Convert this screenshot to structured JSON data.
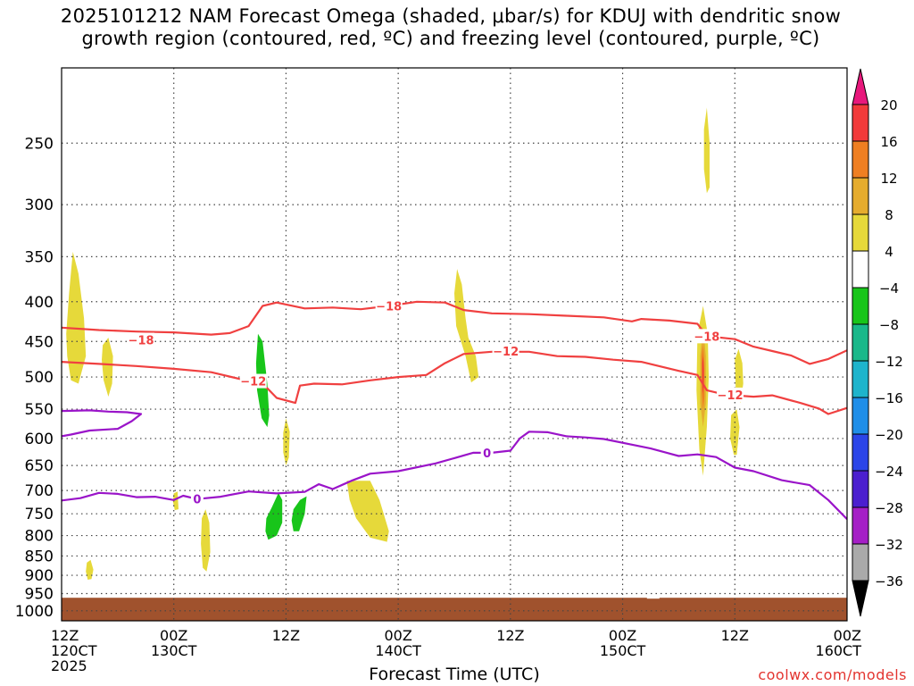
{
  "title": {
    "line1": "2025101212 NAM Forecast Omega (shaded, μbar/s) for KDUJ with dendritic snow",
    "line2": "growth region (contoured, red, ºC) and freezing level (contoured, purple, ºC)"
  },
  "credit": "coolwx.com/models",
  "chart_data": {
    "type": "time-pressure cross-section",
    "xlabel": "Forecast Time (UTC)",
    "ylabel": "",
    "x_range_hours": [
      0,
      84
    ],
    "ylim_hPa": [
      200,
      1030
    ],
    "y_scale": "log-pressure",
    "y_ticks": [
      250,
      300,
      350,
      400,
      450,
      500,
      550,
      600,
      650,
      700,
      750,
      800,
      850,
      900,
      950,
      1000
    ],
    "x_ticks": [
      {
        "hour": 0,
        "line1": "12Z",
        "line2": "120CT",
        "line3": "2025"
      },
      {
        "hour": 12,
        "line1": "00Z",
        "line2": "130CT",
        "line3": ""
      },
      {
        "hour": 24,
        "line1": "12Z",
        "line2": "",
        "line3": ""
      },
      {
        "hour": 36,
        "line1": "00Z",
        "line2": "140CT",
        "line3": ""
      },
      {
        "hour": 48,
        "line1": "12Z",
        "line2": "",
        "line3": ""
      },
      {
        "hour": 60,
        "line1": "00Z",
        "line2": "150CT",
        "line3": ""
      },
      {
        "hour": 72,
        "line1": "12Z",
        "line2": "",
        "line3": ""
      },
      {
        "hour": 84,
        "line1": "00Z",
        "line2": "160CT",
        "line3": ""
      }
    ],
    "colorbar": {
      "label_unit": "μbar/s",
      "levels": [
        20,
        16,
        12,
        8,
        4,
        -4,
        -8,
        -12,
        -16,
        -20,
        -24,
        -28,
        -32,
        -36
      ],
      "bins": [
        {
          "range": "16-20",
          "color": "#f23a3a"
        },
        {
          "range": "12-16",
          "color": "#ef7f22"
        },
        {
          "range": "8-12",
          "color": "#e5ac2e"
        },
        {
          "range": "4-8",
          "color": "#e6d93a"
        },
        {
          "range": "-4-4",
          "color": "#ffffff"
        },
        {
          "range": "-8--4",
          "color": "#18c51a"
        },
        {
          "range": "-12--8",
          "color": "#1ab88a"
        },
        {
          "range": "-16--12",
          "color": "#1eb4cc"
        },
        {
          "range": "-20--16",
          "color": "#1f8ee8"
        },
        {
          "range": "-24--20",
          "color": "#2b45e8"
        },
        {
          "range": "-28--24",
          "color": "#4b1fcf"
        },
        {
          "range": "-32--28",
          "color": "#a51fc6"
        },
        {
          "range": "-36--32",
          "color": "#aaaaaa"
        }
      ],
      "top_arrow_color": "#e8187c",
      "bottom_arrow_color": "#000000"
    },
    "ground_color": "#a0522d",
    "ground_top_hPa": 962,
    "contours": [
      {
        "name": "dgz-minus18",
        "label": "-18",
        "color": "#f04040",
        "label_points": [
          [
            8.5,
            448
          ],
          [
            35.0,
            405
          ],
          [
            69.0,
            443
          ]
        ],
        "points": [
          [
            0,
            432
          ],
          [
            4,
            435
          ],
          [
            8,
            437
          ],
          [
            12,
            438
          ],
          [
            16,
            441
          ],
          [
            18,
            439
          ],
          [
            20,
            430
          ],
          [
            21.5,
            405
          ],
          [
            23,
            401
          ],
          [
            26,
            408
          ],
          [
            29,
            407
          ],
          [
            32,
            409
          ],
          [
            35,
            405
          ],
          [
            38,
            400
          ],
          [
            41,
            401
          ],
          [
            43,
            410
          ],
          [
            46,
            414
          ],
          [
            50,
            415
          ],
          [
            54,
            417
          ],
          [
            58,
            419
          ],
          [
            61,
            424
          ],
          [
            62,
            421
          ],
          [
            65,
            423
          ],
          [
            68,
            427
          ],
          [
            69,
            443
          ],
          [
            72,
            447
          ],
          [
            74,
            457
          ],
          [
            76,
            463
          ],
          [
            78,
            469
          ],
          [
            80,
            481
          ],
          [
            82,
            474
          ],
          [
            84,
            462
          ]
        ]
      },
      {
        "name": "dgz-minus12",
        "label": "-12",
        "color": "#f04040",
        "label_points": [
          [
            20.5,
            506
          ],
          [
            47.5,
            463
          ],
          [
            71.5,
            527
          ]
        ],
        "points": [
          [
            0,
            478
          ],
          [
            4,
            481
          ],
          [
            8,
            484
          ],
          [
            12,
            488
          ],
          [
            16,
            493
          ],
          [
            20,
            506
          ],
          [
            22,
            517
          ],
          [
            23,
            532
          ],
          [
            25,
            540
          ],
          [
            25.5,
            513
          ],
          [
            27,
            510
          ],
          [
            30,
            511
          ],
          [
            33,
            505
          ],
          [
            36,
            500
          ],
          [
            39,
            497
          ],
          [
            41,
            480
          ],
          [
            43,
            467
          ],
          [
            46,
            464
          ],
          [
            50,
            464
          ],
          [
            53,
            470
          ],
          [
            56,
            471
          ],
          [
            59,
            475
          ],
          [
            62,
            478
          ],
          [
            66,
            491
          ],
          [
            68,
            497
          ],
          [
            69,
            520
          ],
          [
            71,
            527
          ],
          [
            74,
            530
          ],
          [
            76,
            528
          ],
          [
            79,
            540
          ],
          [
            81,
            549
          ],
          [
            82,
            558
          ],
          [
            84,
            548
          ]
        ]
      },
      {
        "name": "freezing-0-upper",
        "label": "",
        "color": "#9a14c9",
        "label_points": [],
        "points": [
          [
            0,
            553
          ],
          [
            3,
            552
          ],
          [
            5,
            554
          ],
          [
            7,
            555
          ],
          [
            8.5,
            558
          ],
          [
            7.5,
            570
          ],
          [
            6,
            583
          ],
          [
            3,
            586
          ],
          [
            1,
            593
          ],
          [
            0,
            596
          ]
        ]
      },
      {
        "name": "freezing-0-lower",
        "label": "0",
        "color": "#9a14c9",
        "label_points": [
          [
            14.5,
            718
          ],
          [
            45.5,
            626
          ]
        ],
        "points": [
          [
            0,
            721
          ],
          [
            2,
            716
          ],
          [
            4,
            705
          ],
          [
            6,
            707
          ],
          [
            8,
            714
          ],
          [
            10,
            713
          ],
          [
            12,
            720
          ],
          [
            13,
            711
          ],
          [
            14.5,
            718
          ],
          [
            17,
            713
          ],
          [
            20,
            702
          ],
          [
            23,
            706
          ],
          [
            26,
            703
          ],
          [
            27.5,
            687
          ],
          [
            29,
            697
          ],
          [
            31,
            680
          ],
          [
            33,
            666
          ],
          [
            36,
            661
          ],
          [
            40,
            646
          ],
          [
            42,
            636
          ],
          [
            44,
            626
          ],
          [
            46,
            626
          ],
          [
            48,
            622
          ],
          [
            49,
            600
          ],
          [
            50,
            588
          ],
          [
            52,
            589
          ],
          [
            54,
            596
          ],
          [
            56,
            598
          ],
          [
            58,
            601
          ],
          [
            61,
            611
          ],
          [
            63,
            618
          ],
          [
            66,
            632
          ],
          [
            68,
            629
          ],
          [
            70,
            634
          ],
          [
            72,
            654
          ],
          [
            74,
            661
          ],
          [
            77,
            679
          ],
          [
            80,
            689
          ],
          [
            82,
            720
          ],
          [
            84,
            762
          ]
        ]
      }
    ],
    "omega_regions": [
      {
        "name": "pos-1",
        "color": "#e6d93a",
        "points": [
          [
            0.5,
            440
          ],
          [
            0.8,
            390
          ],
          [
            1.2,
            345
          ],
          [
            1.8,
            368
          ],
          [
            2.4,
            420
          ],
          [
            2.6,
            470
          ],
          [
            1.8,
            510
          ],
          [
            1.0,
            505
          ],
          [
            0.6,
            470
          ]
        ]
      },
      {
        "name": "pos-2",
        "color": "#e6d93a",
        "points": [
          [
            4.4,
            455
          ],
          [
            5.0,
            445
          ],
          [
            5.5,
            470
          ],
          [
            5.4,
            510
          ],
          [
            5.0,
            530
          ],
          [
            4.5,
            505
          ],
          [
            4.3,
            475
          ]
        ]
      },
      {
        "name": "pos-3",
        "color": "#e6d93a",
        "points": [
          [
            2.7,
            867
          ],
          [
            3.1,
            860
          ],
          [
            3.4,
            885
          ],
          [
            3.2,
            910
          ],
          [
            2.8,
            912
          ],
          [
            2.6,
            890
          ]
        ]
      },
      {
        "name": "pos-4",
        "color": "#e6d93a",
        "points": [
          [
            12.0,
            706
          ],
          [
            12.4,
            702
          ],
          [
            12.5,
            740
          ],
          [
            12.1,
            742
          ],
          [
            11.9,
            722
          ]
        ]
      },
      {
        "name": "pos-5",
        "color": "#e6d93a",
        "points": [
          [
            15.0,
            760
          ],
          [
            15.4,
            740
          ],
          [
            15.8,
            770
          ],
          [
            15.9,
            840
          ],
          [
            15.5,
            890
          ],
          [
            15.1,
            880
          ],
          [
            14.9,
            820
          ]
        ]
      },
      {
        "name": "pos-6",
        "color": "#e6d93a",
        "points": [
          [
            23.7,
            590
          ],
          [
            24.0,
            565
          ],
          [
            24.4,
            588
          ],
          [
            24.3,
            635
          ],
          [
            24.0,
            650
          ],
          [
            23.7,
            625
          ]
        ]
      },
      {
        "name": "pos-7",
        "color": "#e6d93a",
        "points": [
          [
            30.5,
            680
          ],
          [
            33.0,
            680
          ],
          [
            34.0,
            720
          ],
          [
            35.0,
            790
          ],
          [
            34.8,
            815
          ],
          [
            33.0,
            805
          ],
          [
            31.5,
            760
          ],
          [
            30.8,
            720
          ]
        ]
      },
      {
        "name": "pos-8",
        "color": "#e6d93a",
        "points": [
          [
            42.0,
            390
          ],
          [
            42.3,
            363
          ],
          [
            42.8,
            380
          ],
          [
            43.2,
            420
          ],
          [
            43.5,
            445
          ],
          [
            44.3,
            470
          ],
          [
            44.6,
            500
          ],
          [
            43.8,
            508
          ],
          [
            43.2,
            470
          ],
          [
            42.2,
            430
          ]
        ]
      },
      {
        "name": "pos-9",
        "color": "#e6d93a",
        "points": [
          [
            68.0,
            440
          ],
          [
            68.6,
            405
          ],
          [
            69.1,
            440
          ],
          [
            69.2,
            500
          ],
          [
            69.0,
            580
          ],
          [
            68.6,
            670
          ],
          [
            68.2,
            620
          ],
          [
            67.9,
            520
          ]
        ]
      },
      {
        "name": "pos-10",
        "color": "#e5ac2e",
        "points": [
          [
            68.3,
            470
          ],
          [
            68.6,
            430
          ],
          [
            68.9,
            470
          ],
          [
            68.9,
            540
          ],
          [
            68.6,
            580
          ],
          [
            68.3,
            540
          ]
        ]
      },
      {
        "name": "pos-11",
        "color": "#ef7f22",
        "points": [
          [
            68.45,
            470
          ],
          [
            68.6,
            455
          ],
          [
            68.75,
            480
          ],
          [
            68.75,
            530
          ],
          [
            68.6,
            550
          ],
          [
            68.45,
            520
          ]
        ]
      },
      {
        "name": "pos-12",
        "color": "#f23a3a",
        "points": [
          [
            68.52,
            480
          ],
          [
            68.6,
            470
          ],
          [
            68.68,
            490
          ],
          [
            68.66,
            515
          ],
          [
            68.6,
            525
          ],
          [
            68.53,
            510
          ]
        ]
      },
      {
        "name": "pos-13",
        "color": "#e6d93a",
        "points": [
          [
            68.7,
            240
          ],
          [
            69.0,
            225
          ],
          [
            69.3,
            250
          ],
          [
            69.3,
            285
          ],
          [
            69.0,
            290
          ],
          [
            68.7,
            270
          ]
        ]
      },
      {
        "name": "pos-14",
        "color": "#e6d93a",
        "points": [
          [
            71.6,
            560
          ],
          [
            72.2,
            550
          ],
          [
            72.5,
            580
          ],
          [
            72.2,
            630
          ],
          [
            71.9,
            630
          ],
          [
            71.5,
            600
          ]
        ]
      },
      {
        "name": "pos-15",
        "color": "#e6d93a",
        "points": [
          [
            72.0,
            475
          ],
          [
            72.4,
            460
          ],
          [
            72.8,
            480
          ],
          [
            72.9,
            510
          ],
          [
            72.6,
            540
          ],
          [
            72.1,
            520
          ]
        ]
      },
      {
        "name": "neg-1",
        "color": "#18c51a",
        "points": [
          [
            20.8,
            480
          ],
          [
            21.0,
            440
          ],
          [
            21.5,
            450
          ],
          [
            22.0,
            510
          ],
          [
            22.2,
            560
          ],
          [
            22.0,
            580
          ],
          [
            21.4,
            565
          ],
          [
            20.9,
            520
          ]
        ]
      },
      {
        "name": "neg-2",
        "color": "#18c51a",
        "points": [
          [
            21.9,
            760
          ],
          [
            22.5,
            735
          ],
          [
            23.2,
            705
          ],
          [
            23.6,
            720
          ],
          [
            23.6,
            770
          ],
          [
            23.0,
            800
          ],
          [
            22.1,
            810
          ],
          [
            21.8,
            790
          ]
        ]
      },
      {
        "name": "neg-3",
        "color": "#18c51a",
        "points": [
          [
            24.8,
            740
          ],
          [
            25.5,
            720
          ],
          [
            26.2,
            712
          ],
          [
            26.0,
            750
          ],
          [
            25.4,
            790
          ],
          [
            24.8,
            790
          ],
          [
            24.6,
            765
          ]
        ]
      }
    ]
  }
}
